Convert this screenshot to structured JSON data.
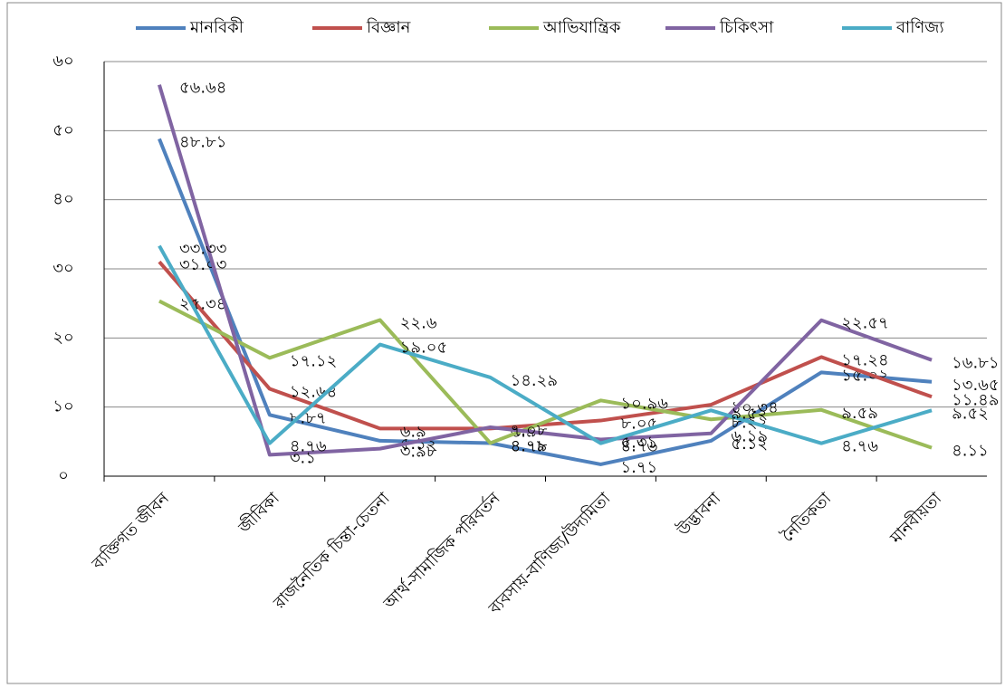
{
  "chart_data": {
    "type": "line",
    "categories": [
      "ব্যক্তিগত জীবন",
      "জীবিকা",
      "রাজনৈতিক চিন্তা-চেতনা",
      "আর্থ-সামাজিক পরিবর্তন",
      "ব্যবসায়-বাণিজ্য/উদ্যমিতা",
      "উদ্ভাবনা",
      "নৈতিকতা",
      "মানবীয়তা"
    ],
    "series": [
      {
        "name": "মানবিকী",
        "color": "#4f81bd",
        "values": [
          48.81,
          8.87,
          5.12,
          4.78,
          1.71,
          5.12,
          15.02,
          13.65
        ],
        "value_labels": [
          "৪৮.৮১",
          "৮.৮৭",
          "৫.১২",
          "৪.৭৮",
          "১.৭১",
          "৫.১২",
          "১৫.০২",
          "১৩.৬৫"
        ]
      },
      {
        "name": "বিজ্ঞান",
        "color": "#c0504d",
        "values": [
          31.03,
          12.64,
          6.9,
          6.9,
          8.05,
          10.34,
          17.24,
          11.49
        ],
        "value_labels": [
          "৩১.০৩",
          "১২.৬৪",
          "৬.৯",
          "৬.৯",
          "৮.০৫",
          "১০.৩৪",
          "১৭.২৪",
          "১১.৪৯"
        ]
      },
      {
        "name": "আভিযান্ত্রিক",
        "color": "#9bbb59",
        "values": [
          25.34,
          17.12,
          22.6,
          4.79,
          10.96,
          8.22,
          9.59,
          4.11
        ],
        "value_labels": [
          "২৫.৩৪",
          "১৭.১২",
          "২২.৬",
          "৪.৭৯",
          "১০.৯৬",
          "৮.২২",
          "৯.৫৯",
          "৪.১১"
        ]
      },
      {
        "name": "চিকিৎসা",
        "color": "#8064a2",
        "values": [
          56.64,
          3.1,
          3.98,
          7.08,
          5.31,
          6.19,
          22.57,
          16.81
        ],
        "value_labels": [
          "৫৬.৬৪",
          "৩.১",
          "৩.৯৮",
          "৭.০৮",
          "৫.৩১",
          "৬.১৯",
          "২২.৫৭",
          "১৬.৮১"
        ]
      },
      {
        "name": "বাণিজ্য",
        "color": "#4bacc6",
        "values": [
          33.33,
          4.76,
          19.05,
          14.29,
          4.76,
          9.52,
          4.76,
          9.52
        ],
        "value_labels": [
          "৩৩.৩৩",
          "৪.৭৬",
          "১৯.০৫",
          "১৪.২৯",
          "৪.৭৬",
          "৯.৫২",
          "৪.৭৬",
          "৯.৫২"
        ]
      }
    ],
    "ylim": [
      0,
      60
    ],
    "yticks": [
      {
        "value": 0,
        "label": "০"
      },
      {
        "value": 10,
        "label": "১০"
      },
      {
        "value": 20,
        "label": "২০"
      },
      {
        "value": 30,
        "label": "৩০"
      },
      {
        "value": 40,
        "label": "৪০"
      },
      {
        "value": 50,
        "label": "৫০"
      },
      {
        "value": 60,
        "label": "৬০"
      }
    ],
    "grid": true,
    "legend": "top"
  }
}
